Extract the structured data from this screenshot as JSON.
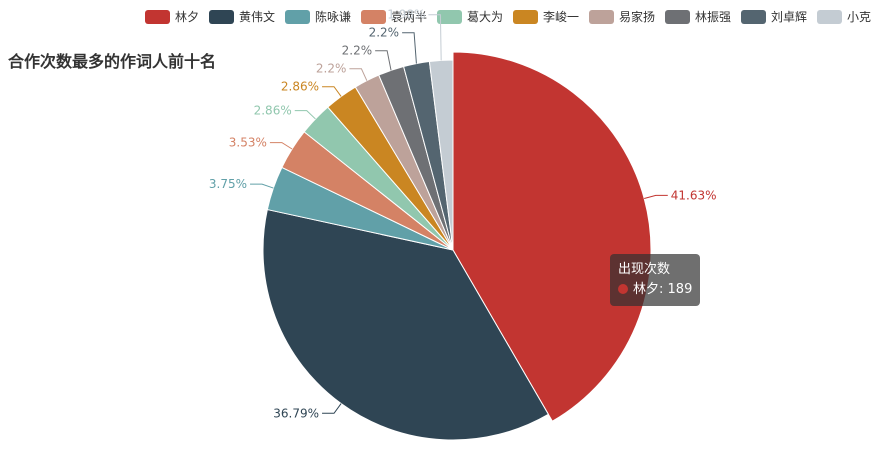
{
  "chart_data": {
    "type": "pie",
    "title": "合作次数最多的作词人前十名",
    "series_name": "出现次数",
    "legend_position": "top-right",
    "slices": [
      {
        "name": "林夕",
        "value": 189,
        "percent": "41.63%",
        "color": "#c23531"
      },
      {
        "name": "黄伟文",
        "value": 167,
        "percent": "36.79%",
        "color": "#2f4554"
      },
      {
        "name": "陈咏谦",
        "value": 17,
        "percent": "3.75%",
        "color": "#61a0a8"
      },
      {
        "name": "袁两半",
        "value": 16,
        "percent": "3.53%",
        "color": "#d48265"
      },
      {
        "name": "葛大为",
        "value": 13,
        "percent": "2.86%",
        "color": "#91c7ae"
      },
      {
        "name": "李峻一",
        "value": 13,
        "percent": "2.86%",
        "color": "#ca8622"
      },
      {
        "name": "易家扬",
        "value": 10,
        "percent": "2.2%",
        "color": "#bda29a"
      },
      {
        "name": "林振强",
        "value": 10,
        "percent": "2.2%",
        "color": "#6e7074"
      },
      {
        "name": "刘卓辉",
        "value": 10,
        "percent": "2.2%",
        "color": "#546570"
      },
      {
        "name": "小克",
        "value": 9,
        "percent": "1.98%",
        "color": "#c4ccd3"
      }
    ],
    "tooltip": {
      "title": "出现次数",
      "item_name": "林夕",
      "item_value": 189
    }
  }
}
